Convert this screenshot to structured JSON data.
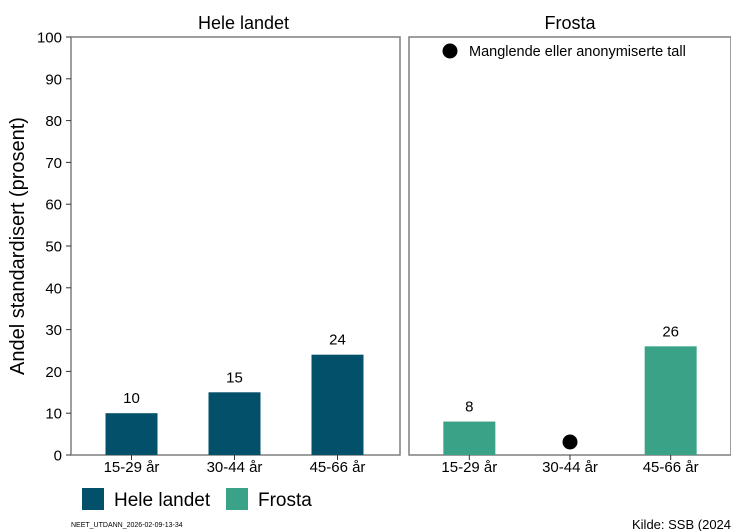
{
  "chart_data": {
    "type": "bar",
    "ylabel": "Andel standardisert (prosent)",
    "ylim": [
      0,
      100
    ],
    "yticks": [
      0,
      10,
      20,
      30,
      40,
      50,
      60,
      70,
      80,
      90,
      100
    ],
    "grid": false,
    "categories": [
      "15-29 år",
      "30-44 år",
      "45-66 år"
    ],
    "panels": [
      {
        "title": "Hele landet",
        "series": "Hele landet",
        "color": "#03506a",
        "values": [
          10,
          15,
          24
        ],
        "labels": [
          "10",
          "15",
          "24"
        ],
        "missing": [
          false,
          false,
          false
        ]
      },
      {
        "title": "Frosta",
        "series": "Frosta",
        "color": "#3aa387",
        "values": [
          8,
          null,
          26
        ],
        "labels": [
          "8",
          "",
          "26"
        ],
        "missing": [
          false,
          true,
          false
        ]
      }
    ],
    "legend": {
      "position": "bottom-left",
      "items": [
        {
          "label": "Hele landet",
          "color": "#03506a"
        },
        {
          "label": "Frosta",
          "color": "#3aa387"
        }
      ]
    },
    "missing_note": {
      "label": "Manglende eller anonymiserte tall",
      "color": "#000000",
      "position": "top"
    }
  },
  "footer": {
    "code": "NEET_UTDANN_2026-02-09-13-34",
    "source": "Kilde: SSB (2024"
  }
}
